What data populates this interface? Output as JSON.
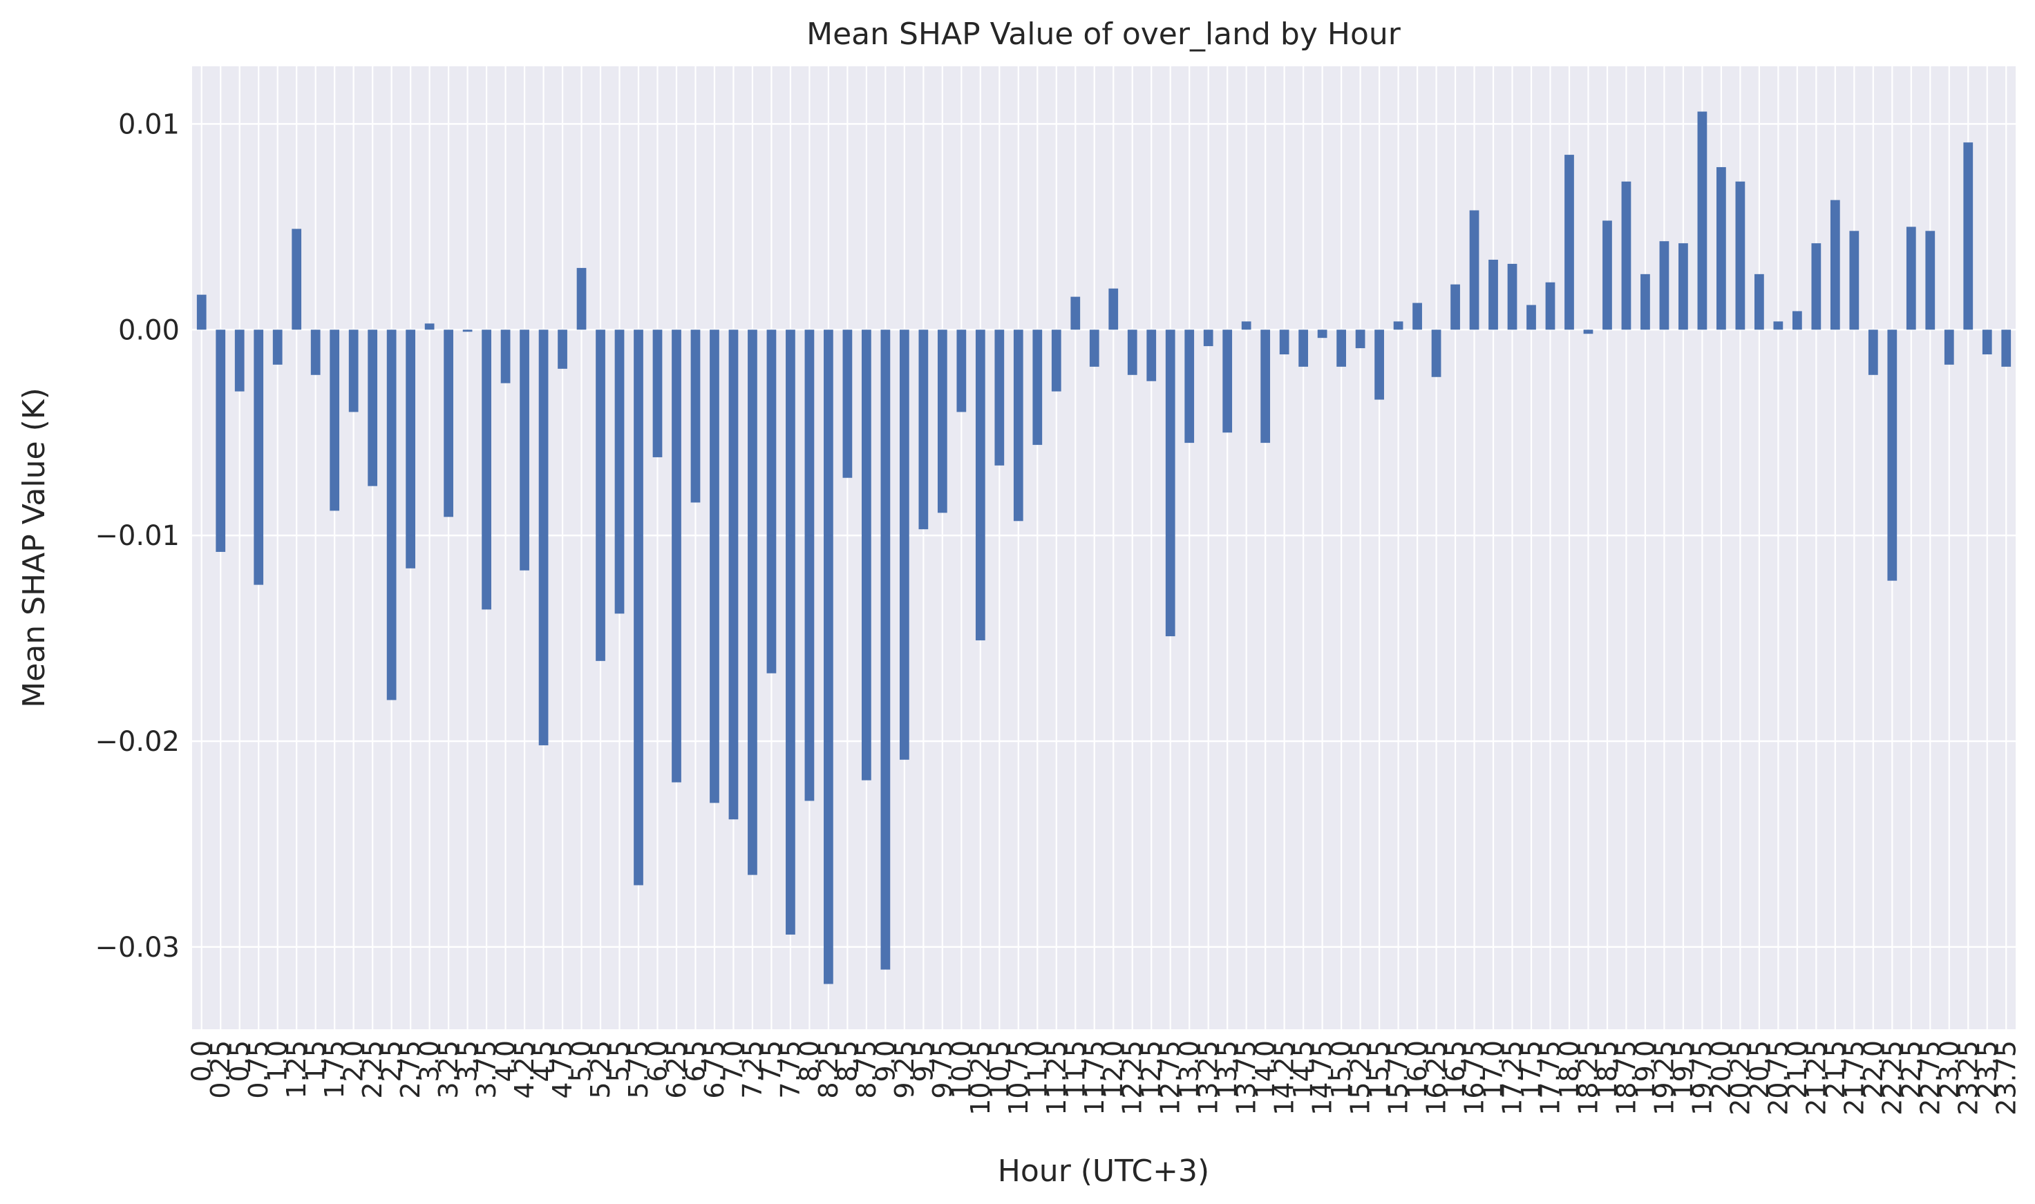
{
  "chart_data": {
    "type": "bar",
    "title": "Mean SHAP Value of over_land by Hour",
    "xlabel": "Hour (UTC+3)",
    "ylabel": "Mean SHAP Value (K)",
    "ylim": [
      -0.034,
      0.0128
    ],
    "yticks": [
      0.01,
      0.0,
      -0.01,
      -0.02,
      -0.03
    ],
    "ytick_labels": [
      "0.01",
      "0.00",
      "−0.01",
      "−0.02",
      "−0.03"
    ],
    "grid": true,
    "colors": {
      "bar": "#4c72b0",
      "background": "#eaeaf2",
      "grid": "#ffffff"
    },
    "categories": [
      "0.0",
      "0.25",
      "0.5",
      "0.75",
      "1.0",
      "1.25",
      "1.5",
      "1.75",
      "2.0",
      "2.25",
      "2.5",
      "2.75",
      "3.0",
      "3.25",
      "3.5",
      "3.75",
      "4.0",
      "4.25",
      "4.5",
      "4.75",
      "5.0",
      "5.25",
      "5.5",
      "5.75",
      "6.0",
      "6.25",
      "6.5",
      "6.75",
      "7.0",
      "7.25",
      "7.5",
      "7.75",
      "8.0",
      "8.25",
      "8.5",
      "8.75",
      "9.0",
      "9.25",
      "9.5",
      "9.75",
      "10.0",
      "10.25",
      "10.5",
      "10.75",
      "11.0",
      "11.25",
      "11.5",
      "11.75",
      "12.0",
      "12.25",
      "12.5",
      "12.75",
      "13.0",
      "13.25",
      "13.5",
      "13.75",
      "14.0",
      "14.25",
      "14.5",
      "14.75",
      "15.0",
      "15.25",
      "15.5",
      "15.75",
      "16.0",
      "16.25",
      "16.5",
      "16.75",
      "17.0",
      "17.25",
      "17.5",
      "17.75",
      "18.0",
      "18.25",
      "18.5",
      "18.75",
      "19.0",
      "19.25",
      "19.5",
      "19.75",
      "20.0",
      "20.25",
      "20.5",
      "20.75",
      "21.0",
      "21.25",
      "21.5",
      "21.75",
      "22.0",
      "22.25",
      "22.5",
      "22.75",
      "23.0",
      "23.25",
      "23.5",
      "23.75"
    ],
    "values": [
      0.0017,
      -0.0108,
      -0.003,
      -0.0124,
      -0.0017,
      0.0049,
      -0.0022,
      -0.0088,
      -0.004,
      -0.0076,
      -0.018,
      -0.0116,
      0.0003,
      -0.0091,
      -0.0001,
      -0.0136,
      -0.0026,
      -0.0117,
      -0.0202,
      -0.0019,
      0.003,
      -0.0161,
      -0.0138,
      -0.027,
      -0.0062,
      -0.022,
      -0.0084,
      -0.023,
      -0.0238,
      -0.0265,
      -0.0167,
      -0.0294,
      -0.0229,
      -0.0318,
      -0.0072,
      -0.0219,
      -0.0311,
      -0.0209,
      -0.0097,
      -0.0089,
      -0.004,
      -0.0151,
      -0.0066,
      -0.0093,
      -0.0056,
      -0.003,
      0.0016,
      -0.0018,
      0.002,
      -0.0022,
      -0.0025,
      -0.0149,
      -0.0055,
      -0.0008,
      -0.005,
      0.0004,
      -0.0055,
      -0.0012,
      -0.0018,
      -0.0004,
      -0.0018,
      -0.0009,
      -0.0034,
      0.0004,
      0.0013,
      -0.0023,
      0.0022,
      0.0058,
      0.0034,
      0.0032,
      0.0012,
      0.0023,
      0.0085,
      -0.0002,
      0.0053,
      0.0072,
      0.0027,
      0.0043,
      0.0042,
      0.0106,
      0.0079,
      0.0072,
      0.0027,
      0.0004,
      0.0009,
      0.0042,
      0.0063,
      0.0048,
      -0.0022,
      -0.0122,
      0.005,
      0.0048,
      -0.0017,
      0.0091,
      -0.0012,
      -0.0018
    ]
  }
}
